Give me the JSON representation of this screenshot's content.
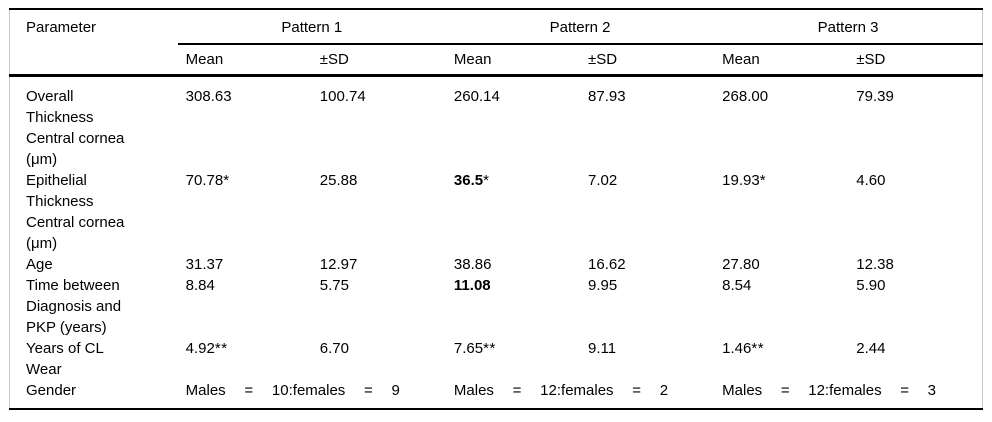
{
  "table": {
    "parameter_header": "Parameter",
    "groups": [
      {
        "label": "Pattern 1"
      },
      {
        "label": "Pattern 2"
      },
      {
        "label": "Pattern 3"
      }
    ],
    "subheaders": {
      "mean": "Mean",
      "sd": "±SD"
    },
    "rows": [
      {
        "label": "Overall Thickness Central cornea (μm)",
        "label_lines": [
          "Overall",
          "Thickness",
          "Central cornea",
          "(μm)"
        ],
        "cells": [
          {
            "v": "308.63",
            "m": "",
            "b": false
          },
          {
            "v": "100.74",
            "m": "",
            "b": false
          },
          {
            "v": "260.14",
            "m": "",
            "b": false
          },
          {
            "v": "87.93",
            "m": "",
            "b": false
          },
          {
            "v": "268.00",
            "m": "",
            "b": false
          },
          {
            "v": "79.39",
            "m": "",
            "b": false
          }
        ]
      },
      {
        "label": "Epithelial Thickness Central cornea (μm)",
        "label_lines": [
          "Epithelial",
          "Thickness",
          "Central cornea",
          "(μm)"
        ],
        "cells": [
          {
            "v": "70.78",
            "m": "*",
            "b": false
          },
          {
            "v": "25.88",
            "m": "",
            "b": false
          },
          {
            "v": "36.5",
            "m": "*",
            "b": true
          },
          {
            "v": "7.02",
            "m": "",
            "b": false
          },
          {
            "v": "19.93",
            "m": "*",
            "b": false
          },
          {
            "v": "4.60",
            "m": "",
            "b": false
          }
        ]
      },
      {
        "label": "Age",
        "label_lines": [
          "Age"
        ],
        "cells": [
          {
            "v": "31.37",
            "m": "",
            "b": false
          },
          {
            "v": "12.97",
            "m": "",
            "b": false
          },
          {
            "v": "38.86",
            "m": "",
            "b": false
          },
          {
            "v": "16.62",
            "m": "",
            "b": false
          },
          {
            "v": "27.80",
            "m": "",
            "b": false
          },
          {
            "v": "12.38",
            "m": "",
            "b": false
          }
        ]
      },
      {
        "label": "Time between Diagnosis and PKP (years)",
        "label_lines": [
          "Time between",
          "Diagnosis and",
          "PKP (years)"
        ],
        "cells": [
          {
            "v": "8.84",
            "m": "",
            "b": false
          },
          {
            "v": "5.75",
            "m": "",
            "b": false
          },
          {
            "v": "11.08",
            "m": "",
            "b": true
          },
          {
            "v": "9.95",
            "m": "",
            "b": false
          },
          {
            "v": "8.54",
            "m": "",
            "b": false
          },
          {
            "v": "5.90",
            "m": "",
            "b": false
          }
        ]
      },
      {
        "label": "Years of CL Wear",
        "label_lines": [
          "Years of CL",
          "Wear"
        ],
        "cells": [
          {
            "v": "4.92",
            "m": "**",
            "b": false
          },
          {
            "v": "6.70",
            "m": "",
            "b": false
          },
          {
            "v": "7.65",
            "m": "**",
            "b": false
          },
          {
            "v": "9.11",
            "m": "",
            "b": false
          },
          {
            "v": "1.46",
            "m": "**",
            "b": false
          },
          {
            "v": "2.44",
            "m": "",
            "b": false
          }
        ]
      },
      {
        "label": "Gender",
        "label_lines": [
          "Gender"
        ],
        "gender": [
          [
            "Males",
            "=",
            "10:females",
            "=",
            "9"
          ],
          [
            "Males",
            "=",
            "12:females",
            "=",
            "2"
          ],
          [
            "Males",
            "=",
            "12:females",
            "=",
            "3"
          ]
        ]
      }
    ]
  }
}
